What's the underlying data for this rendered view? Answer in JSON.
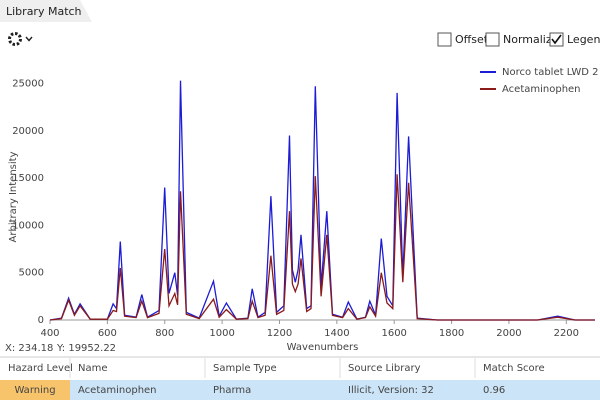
{
  "tab": {
    "title": "Library Match"
  },
  "options": [
    {
      "label": "Offset",
      "checked": false
    },
    {
      "label": "Normalize",
      "checked": false
    },
    {
      "label": "Legend",
      "checked": true
    }
  ],
  "chart_data": {
    "type": "line",
    "x_label": "Wavenumbers",
    "y_label": "Arbitrary Intensity",
    "x": [
      400,
      440,
      465,
      485,
      505,
      540,
      600,
      620,
      632,
      645,
      660,
      700,
      720,
      740,
      780,
      800,
      815,
      835,
      845,
      855,
      875,
      920,
      970,
      990,
      1015,
      1050,
      1090,
      1105,
      1125,
      1150,
      1170,
      1190,
      1215,
      1235,
      1245,
      1255,
      1265,
      1275,
      1295,
      1310,
      1325,
      1345,
      1365,
      1385,
      1420,
      1440,
      1470,
      1500,
      1515,
      1535,
      1555,
      1575,
      1595,
      1610,
      1630,
      1650,
      1680,
      1750,
      1900,
      2100,
      2170,
      2230,
      2300
    ],
    "series": [
      {
        "name": "Norco tablet LWD 2",
        "color": "#1c1cd6",
        "values": [
          0,
          200,
          2300,
          600,
          1700,
          100,
          100,
          1700,
          1200,
          8300,
          500,
          300,
          2700,
          300,
          1000,
          14000,
          2800,
          5000,
          2600,
          25300,
          800,
          200,
          4100,
          400,
          1800,
          100,
          200,
          3300,
          300,
          800,
          13100,
          800,
          1500,
          19500,
          5300,
          4000,
          5300,
          9000,
          1200,
          1500,
          24700,
          3500,
          11500,
          600,
          300,
          1900,
          100,
          300,
          2000,
          500,
          8600,
          2500,
          1500,
          24000,
          4500,
          19400,
          200,
          0,
          0,
          0,
          400,
          0,
          0
        ]
      },
      {
        "name": "Acetaminophen",
        "color": "#8b1a1a",
        "values": [
          0,
          150,
          2100,
          500,
          1500,
          80,
          80,
          1000,
          900,
          5500,
          400,
          250,
          2000,
          250,
          700,
          7500,
          1500,
          2800,
          1600,
          13600,
          600,
          150,
          2200,
          300,
          1100,
          80,
          150,
          2000,
          250,
          500,
          6800,
          600,
          1000,
          11500,
          3800,
          3000,
          3800,
          6500,
          900,
          1200,
          15200,
          2500,
          9000,
          500,
          250,
          1200,
          80,
          250,
          1400,
          400,
          5000,
          1800,
          1200,
          15400,
          4000,
          14500,
          150,
          0,
          0,
          0,
          300,
          0,
          0
        ]
      }
    ],
    "xlim": [
      400,
      2300
    ],
    "ylim": [
      0,
      26000
    ],
    "xticks": [
      400,
      600,
      800,
      1000,
      1200,
      1400,
      1600,
      1800,
      2000,
      2200
    ],
    "yticks": [
      0,
      5000,
      10000,
      15000,
      20000,
      25000
    ],
    "grid": false,
    "legend_position": "upper right"
  },
  "cursor": {
    "x": "X: 234.18",
    "y": "Y: 19952.22"
  },
  "table": {
    "columns": [
      "Hazard Level",
      "Name",
      "Sample Type",
      "Source Library",
      "Match Score"
    ],
    "rows": [
      [
        "Warning",
        "Acetaminophen",
        "Pharma",
        "Illicit, Version: 32",
        "0.96"
      ]
    ]
  }
}
